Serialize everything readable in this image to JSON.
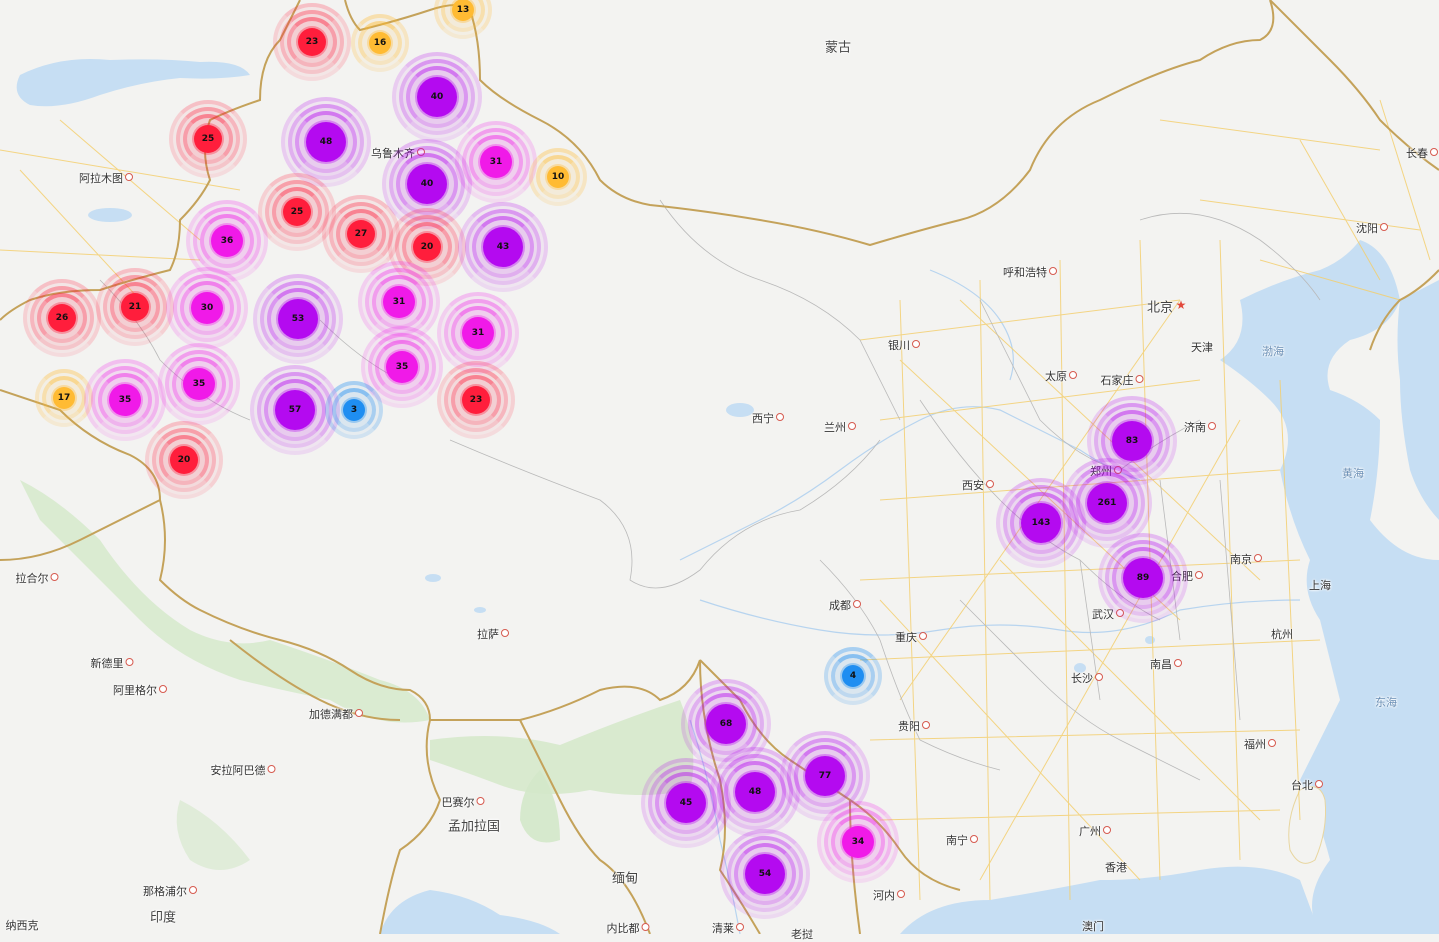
{
  "colors": {
    "land": "#f3f3f1",
    "water": "#c4ddf3",
    "green": "#cfe7c6",
    "border": "#c4a25a",
    "road": "#f5d27c",
    "tier_small": "#ffbb33",
    "tier_blue": "#1f8ef1",
    "tier_red": "#ff1e3c",
    "tier_magenta": "#f01ae8",
    "tier_purple": "#b40af0"
  },
  "places": [
    {
      "name": "蒙古",
      "big": true
    },
    {
      "name": "乌鲁木齐",
      "dot": true
    },
    {
      "name": "阿拉木图",
      "dot": true
    },
    {
      "name": "呼和浩特",
      "dot": true
    },
    {
      "name": "北京",
      "big": true
    },
    {
      "name": "天津"
    },
    {
      "name": "渤海",
      "water": true
    },
    {
      "name": "太原",
      "dot": true
    },
    {
      "name": "石家庄",
      "dot": true
    },
    {
      "name": "济南",
      "dot": true
    },
    {
      "name": "银川",
      "dot": true
    },
    {
      "name": "西宁",
      "dot": true
    },
    {
      "name": "兰州",
      "dot": true
    },
    {
      "name": "西安",
      "dot": true
    },
    {
      "name": "郑州",
      "dot": true
    },
    {
      "name": "黄海",
      "water": true
    },
    {
      "name": "南京",
      "dot": true
    },
    {
      "name": "合肥",
      "dot": true
    },
    {
      "name": "上海"
    },
    {
      "name": "武汉",
      "dot": true
    },
    {
      "name": "杭州"
    },
    {
      "name": "成都",
      "dot": true
    },
    {
      "name": "重庆",
      "dot": true
    },
    {
      "name": "长沙",
      "dot": true
    },
    {
      "name": "南昌",
      "dot": true
    },
    {
      "name": "东海",
      "water": true
    },
    {
      "name": "贵阳",
      "dot": true
    },
    {
      "name": "福州",
      "dot": true
    },
    {
      "name": "台北",
      "dot": true
    },
    {
      "name": "广州",
      "dot": true
    },
    {
      "name": "南宁",
      "dot": true
    },
    {
      "name": "香港"
    },
    {
      "name": "澳门"
    },
    {
      "name": "长春",
      "dot": true
    },
    {
      "name": "沈阳",
      "dot": true
    },
    {
      "name": "拉萨",
      "dot": true
    },
    {
      "name": "拉合尔",
      "dot": true
    },
    {
      "name": "新德里",
      "dot": true
    },
    {
      "name": "阿里格尔",
      "dot": true
    },
    {
      "name": "加德满都",
      "dot": true
    },
    {
      "name": "安拉阿巴德",
      "dot": true
    },
    {
      "name": "巴赛尔",
      "dot": true
    },
    {
      "name": "孟加拉国",
      "big": true
    },
    {
      "name": "缅甸",
      "big": true
    },
    {
      "name": "那格浦尔",
      "dot": true
    },
    {
      "name": "印度",
      "big": true
    },
    {
      "name": "纳西克"
    },
    {
      "name": "内比都",
      "dot": true
    },
    {
      "name": "清莱",
      "dot": true
    },
    {
      "name": "河内",
      "dot": true
    },
    {
      "name": "老挝"
    }
  ],
  "clusters": [
    {
      "count": 13,
      "tier": "small"
    },
    {
      "count": 23,
      "tier": "red"
    },
    {
      "count": 16,
      "tier": "small"
    },
    {
      "count": 40,
      "tier": "purple"
    },
    {
      "count": 25,
      "tier": "red"
    },
    {
      "count": 48,
      "tier": "purple"
    },
    {
      "count": 31,
      "tier": "magenta"
    },
    {
      "count": 10,
      "tier": "small"
    },
    {
      "count": 40,
      "tier": "purple"
    },
    {
      "count": 25,
      "tier": "red"
    },
    {
      "count": 36,
      "tier": "magenta"
    },
    {
      "count": 27,
      "tier": "red"
    },
    {
      "count": 20,
      "tier": "red"
    },
    {
      "count": 43,
      "tier": "purple"
    },
    {
      "count": 26,
      "tier": "red"
    },
    {
      "count": 21,
      "tier": "red"
    },
    {
      "count": 30,
      "tier": "magenta"
    },
    {
      "count": 53,
      "tier": "purple"
    },
    {
      "count": 31,
      "tier": "magenta"
    },
    {
      "count": 31,
      "tier": "magenta"
    },
    {
      "count": 35,
      "tier": "magenta"
    },
    {
      "count": 17,
      "tier": "small"
    },
    {
      "count": 35,
      "tier": "magenta"
    },
    {
      "count": 35,
      "tier": "magenta"
    },
    {
      "count": 57,
      "tier": "purple"
    },
    {
      "count": 3,
      "tier": "blue"
    },
    {
      "count": 23,
      "tier": "red"
    },
    {
      "count": 20,
      "tier": "red"
    },
    {
      "count": 83,
      "tier": "purple"
    },
    {
      "count": 261,
      "tier": "purple"
    },
    {
      "count": 143,
      "tier": "purple"
    },
    {
      "count": 89,
      "tier": "purple"
    },
    {
      "count": 4,
      "tier": "blue"
    },
    {
      "count": 68,
      "tier": "purple"
    },
    {
      "count": 77,
      "tier": "purple"
    },
    {
      "count": 48,
      "tier": "purple"
    },
    {
      "count": 45,
      "tier": "purple"
    },
    {
      "count": 34,
      "tier": "magenta"
    },
    {
      "count": 54,
      "tier": "purple"
    }
  ]
}
